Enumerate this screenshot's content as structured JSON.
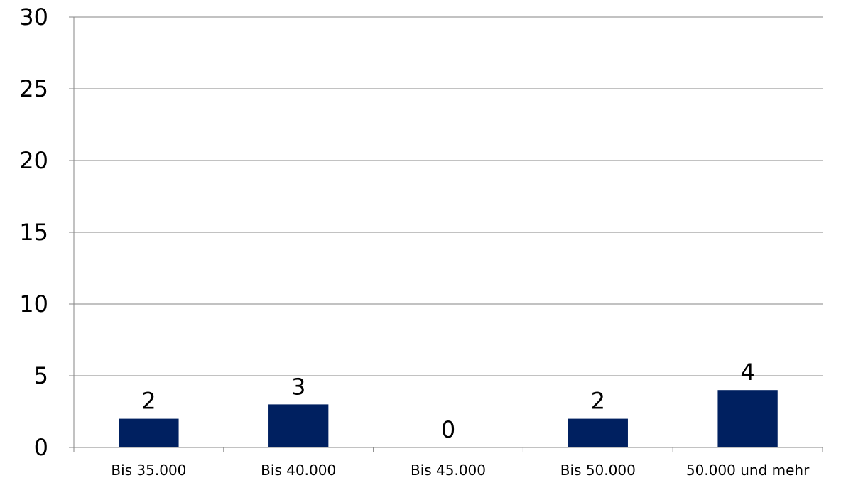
{
  "chart_data": {
    "type": "bar",
    "categories": [
      "Bis 35.000",
      "Bis 40.000",
      "Bis 45.000",
      "Bis 50.000",
      "50.000 und mehr"
    ],
    "values": [
      2,
      3,
      0,
      2,
      4
    ],
    "ylim": [
      0,
      30
    ],
    "yticks": [
      "0",
      "5",
      "10",
      "15",
      "20",
      "25",
      "30"
    ],
    "data_labels": [
      "2",
      "3",
      "0",
      "2",
      "4"
    ],
    "title": "",
    "xlabel": "",
    "ylabel": "",
    "grid": true,
    "legend": "none",
    "bar_color": "#002060",
    "grid_color": "#868686"
  }
}
